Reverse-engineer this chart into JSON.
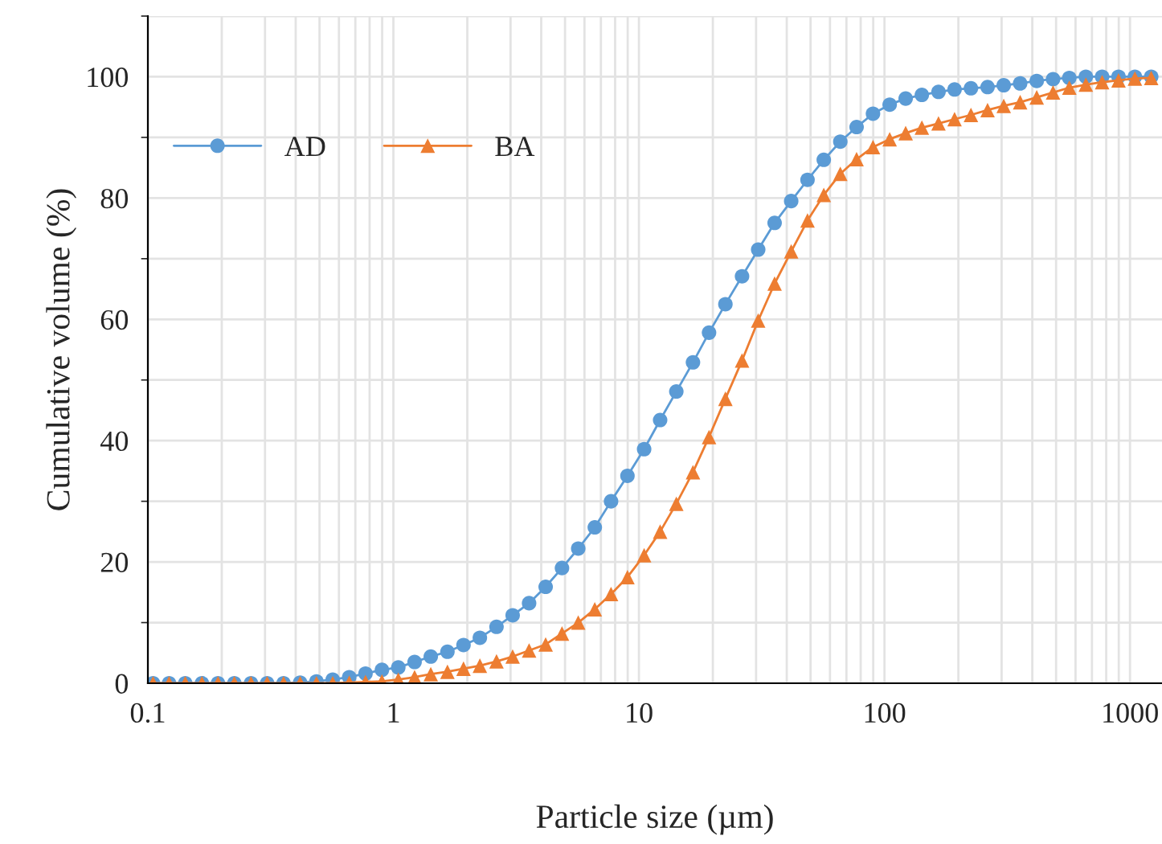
{
  "chart_data": {
    "type": "line",
    "xlabel": "Particle size (µm)",
    "ylabel": "Cumulative volume (%)",
    "x": [
      0.105,
      0.122,
      0.142,
      0.166,
      0.193,
      0.225,
      0.263,
      0.306,
      0.357,
      0.417,
      0.486,
      0.566,
      0.661,
      0.77,
      0.898,
      1.047,
      1.22,
      1.42,
      1.66,
      1.93,
      2.25,
      2.63,
      3.06,
      3.57,
      4.17,
      4.86,
      5.66,
      6.61,
      7.7,
      8.98,
      10.5,
      12.2,
      14.2,
      16.6,
      19.3,
      22.5,
      26.3,
      30.6,
      35.7,
      41.7,
      48.6,
      56.6,
      66.1,
      77.0,
      89.8,
      105,
      122,
      142,
      166,
      193,
      225,
      263,
      306,
      357,
      417,
      486,
      566,
      661,
      770,
      898,
      1047,
      1220
    ],
    "series": [
      {
        "name": "AD",
        "color": "#5b9bd5",
        "marker": "circle",
        "values": [
          0,
          0,
          0,
          0,
          0,
          0,
          0,
          0,
          0,
          0.1,
          0.3,
          0.6,
          1.0,
          1.6,
          2.2,
          2.6,
          3.5,
          4.4,
          5.2,
          6.3,
          7.5,
          9.3,
          11.2,
          13.2,
          15.9,
          19,
          22.2,
          25.7,
          30,
          34.2,
          38.6,
          43.4,
          48.1,
          52.9,
          57.8,
          62.5,
          67.1,
          71.5,
          75.9,
          79.5,
          83,
          86.3,
          89.3,
          91.7,
          93.9,
          95.4,
          96.4,
          97,
          97.5,
          97.9,
          98.1,
          98.3,
          98.6,
          98.9,
          99.3,
          99.6,
          99.8,
          100,
          100,
          100,
          100,
          100
        ]
      },
      {
        "name": "BA",
        "color": "#ed7d31",
        "marker": "triangle",
        "values": [
          0,
          0,
          0,
          0,
          0,
          0,
          0,
          0,
          0,
          0,
          0,
          0,
          0.1,
          0.2,
          0.3,
          0.6,
          1.0,
          1.5,
          1.9,
          2.4,
          2.9,
          3.6,
          4.4,
          5.4,
          6.4,
          8.2,
          10,
          12.2,
          14.7,
          17.5,
          21.1,
          25,
          29.6,
          34.8,
          40.6,
          46.9,
          53.2,
          59.8,
          65.9,
          71.2,
          76.3,
          80.5,
          84,
          86.4,
          88.4,
          89.7,
          90.7,
          91.6,
          92.3,
          93,
          93.7,
          94.5,
          95.2,
          95.8,
          96.6,
          97.4,
          98.2,
          98.7,
          99.1,
          99.4,
          99.7,
          99.8
        ]
      }
    ],
    "log": "x",
    "xlim": [
      0.1,
      1350
    ],
    "xticks": [
      {
        "value": 0.1,
        "label": "0.1"
      },
      1,
      10,
      100,
      1000
    ],
    "ylim": [
      0,
      110
    ],
    "yticks": [
      0,
      20,
      40,
      60,
      80,
      100
    ],
    "grid": true,
    "legend": "top left",
    "line_style": "solid"
  }
}
